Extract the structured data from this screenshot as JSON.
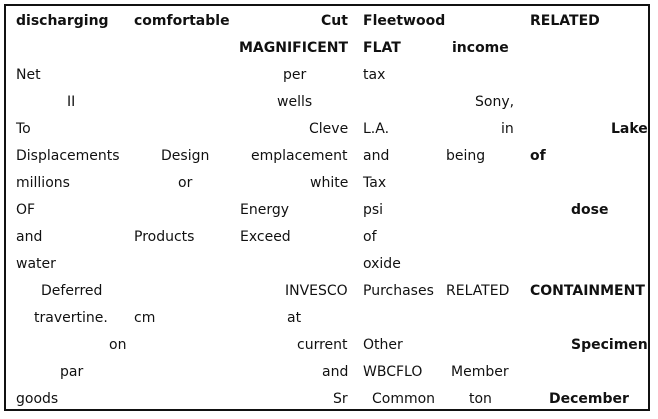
{
  "table": {
    "header": [
      {
        "row": 0,
        "col": 0,
        "text": "discharging",
        "align": "l",
        "bold": true
      },
      {
        "row": 0,
        "col": 1,
        "text": "comfortable",
        "align": "l",
        "bold": true
      },
      {
        "row": 0,
        "col": 2,
        "text": "Cut",
        "align": "r",
        "bold": true
      },
      {
        "row": 0,
        "col": 3,
        "text": "Fleetwood",
        "align": "c",
        "bold": true
      },
      {
        "row": 0,
        "col": 5,
        "text": "RELATED",
        "align": "l",
        "bold": true
      },
      {
        "row": 1,
        "col": 2,
        "text": "MAGNIFICENT",
        "align": "r",
        "bold": true
      },
      {
        "row": 1,
        "col": 3,
        "text": "FLAT",
        "align": "l",
        "bold": true
      },
      {
        "row": 1,
        "col": 4,
        "text": "income",
        "align": "c",
        "bold": true
      }
    ],
    "rows": [
      [
        [
          "Net",
          "l",
          0
        ],
        [
          "",
          "l",
          0
        ],
        [
          "per",
          "c",
          0
        ],
        [
          "tax",
          "l",
          0
        ],
        [
          "",
          "l",
          0
        ],
        [
          "",
          "l",
          0
        ]
      ],
      [
        [
          "II",
          "c",
          0
        ],
        [
          "",
          "l",
          0
        ],
        [
          "wells",
          "c",
          0
        ],
        [
          "",
          "l",
          0
        ],
        [
          "Sony,",
          "r",
          0
        ],
        [
          "",
          "l",
          0
        ]
      ],
      [
        [
          "To",
          "l",
          0
        ],
        [
          "",
          "l",
          0
        ],
        [
          "Cleve",
          "r",
          0
        ],
        [
          "L.A.",
          "l",
          0
        ],
        [
          "in",
          "r",
          0
        ],
        [
          "Lake",
          "r",
          1
        ]
      ],
      [
        [
          "Displacements",
          "l",
          0
        ],
        [
          "Design",
          "c",
          0
        ],
        [
          "emplacement",
          "r",
          0
        ],
        [
          "and",
          "l",
          0
        ],
        [
          "being",
          "l",
          0
        ],
        [
          "of",
          "l",
          1
        ]
      ],
      [
        [
          "millions",
          "l",
          0
        ],
        [
          "or",
          "c",
          0
        ],
        [
          "white",
          "r",
          0
        ],
        [
          "Tax",
          "l",
          0
        ],
        [
          "",
          "l",
          0
        ],
        [
          "",
          "l",
          0
        ]
      ],
      [
        [
          "OF",
          "l",
          0
        ],
        [
          "",
          "l",
          0
        ],
        [
          "Energy",
          "l",
          0
        ],
        [
          "psi",
          "l",
          0
        ],
        [
          "",
          "l",
          0
        ],
        [
          "dose",
          "c",
          1
        ]
      ],
      [
        [
          "and",
          "l",
          0
        ],
        [
          "Products",
          "l",
          0
        ],
        [
          "Exceed",
          "l",
          0
        ],
        [
          "of",
          "l",
          0
        ],
        [
          "",
          "l",
          0
        ],
        [
          "",
          "l",
          0
        ]
      ],
      [
        [
          "water",
          "l",
          0
        ],
        [
          "",
          "l",
          0
        ],
        [
          "",
          "l",
          0
        ],
        [
          "oxide",
          "l",
          0
        ],
        [
          "",
          "l",
          0
        ],
        [
          "",
          "l",
          0
        ]
      ],
      [
        [
          "Deferred",
          "c",
          0
        ],
        [
          "",
          "l",
          0
        ],
        [
          "INVESCO",
          "r",
          0
        ],
        [
          "Purchases",
          "l",
          0
        ],
        [
          "RELATED",
          "l",
          0
        ],
        [
          "CONTAINMENT",
          "l",
          1
        ]
      ],
      [
        [
          "travertine.",
          "c",
          0
        ],
        [
          "cm",
          "l",
          0
        ],
        [
          "at",
          "c",
          0
        ],
        [
          "",
          "l",
          0
        ],
        [
          "",
          "l",
          0
        ],
        [
          "",
          "l",
          0
        ]
      ],
      [
        [
          "on",
          "r",
          0
        ],
        [
          "",
          "l",
          0
        ],
        [
          "current",
          "r",
          0
        ],
        [
          "Other",
          "l",
          0
        ],
        [
          "",
          "l",
          0
        ],
        [
          "Specimen",
          "r",
          1
        ]
      ],
      [
        [
          "par",
          "c",
          0
        ],
        [
          "",
          "l",
          0
        ],
        [
          "and",
          "r",
          0
        ],
        [
          "WBCFLO",
          "l",
          0
        ],
        [
          "Member",
          "c",
          0
        ],
        [
          "",
          "l",
          0
        ]
      ],
      [
        [
          "goods",
          "l",
          0
        ],
        [
          "",
          "l",
          0
        ],
        [
          "Sr",
          "r",
          0
        ],
        [
          "Common",
          "c",
          0
        ],
        [
          "ton",
          "c",
          0
        ],
        [
          "December",
          "c",
          1
        ]
      ]
    ]
  }
}
